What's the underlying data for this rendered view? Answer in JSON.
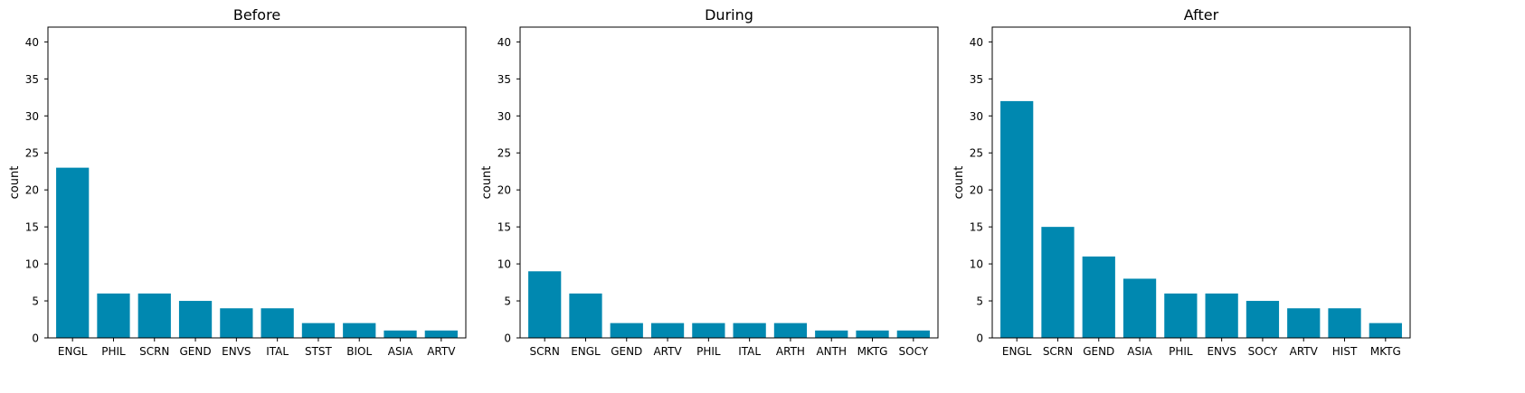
{
  "chart_data": [
    {
      "type": "bar",
      "title": "Before",
      "ylabel": "count",
      "ylim": [
        0,
        42
      ],
      "yticks": [
        0,
        5,
        10,
        15,
        20,
        25,
        30,
        35,
        40
      ],
      "categories": [
        "ENGL",
        "PHIL",
        "SCRN",
        "GEND",
        "ENVS",
        "ITAL",
        "STST",
        "BIOL",
        "ASIA",
        "ARTV"
      ],
      "values": [
        23,
        6,
        6,
        5,
        4,
        4,
        2,
        2,
        1,
        1
      ],
      "color": "#0088b0",
      "grid": false
    },
    {
      "type": "bar",
      "title": "During",
      "ylabel": "count",
      "ylim": [
        0,
        42
      ],
      "yticks": [
        0,
        5,
        10,
        15,
        20,
        25,
        30,
        35,
        40
      ],
      "categories": [
        "SCRN",
        "ENGL",
        "GEND",
        "ARTV",
        "PHIL",
        "ITAL",
        "ARTH",
        "ANTH",
        "MKTG",
        "SOCY"
      ],
      "values": [
        9,
        6,
        2,
        2,
        2,
        2,
        2,
        1,
        1,
        1
      ],
      "color": "#0088b0",
      "grid": false
    },
    {
      "type": "bar",
      "title": "After",
      "ylabel": "count",
      "ylim": [
        0,
        42
      ],
      "yticks": [
        0,
        5,
        10,
        15,
        20,
        25,
        30,
        35,
        40
      ],
      "categories": [
        "ENGL",
        "SCRN",
        "GEND",
        "ASIA",
        "PHIL",
        "ENVS",
        "SOCY",
        "ARTV",
        "HIST",
        "MKTG"
      ],
      "values": [
        32,
        15,
        11,
        8,
        6,
        6,
        5,
        4,
        4,
        2
      ],
      "color": "#0088b0",
      "grid": false
    }
  ]
}
